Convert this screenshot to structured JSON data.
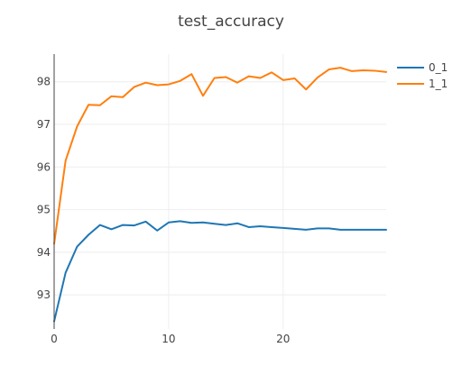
{
  "chart_data": {
    "type": "line",
    "title": "test_accuracy",
    "xlabel": "",
    "ylabel": "",
    "xlim": [
      0,
      29
    ],
    "ylim": [
      92.2,
      98.65
    ],
    "x_ticks": [
      0,
      10,
      20
    ],
    "y_ticks": [
      93,
      94,
      95,
      96,
      97,
      98
    ],
    "grid": true,
    "legend_position": "top-right",
    "x": [
      0,
      1,
      2,
      3,
      4,
      5,
      6,
      7,
      8,
      9,
      10,
      11,
      12,
      13,
      14,
      15,
      16,
      17,
      18,
      19,
      20,
      21,
      22,
      23,
      24,
      25,
      26,
      27,
      28,
      29
    ],
    "series": [
      {
        "name": "0_1",
        "color": "#1f77b4",
        "values": [
          92.38,
          93.52,
          94.13,
          94.41,
          94.64,
          94.54,
          94.64,
          94.63,
          94.72,
          94.51,
          94.7,
          94.73,
          94.69,
          94.7,
          94.67,
          94.64,
          94.68,
          94.59,
          94.61,
          94.59,
          94.57,
          94.55,
          94.53,
          94.56,
          94.56,
          94.53,
          94.53,
          94.53,
          94.53,
          94.53
        ]
      },
      {
        "name": "1_1",
        "color": "#ff7f0e",
        "values": [
          94.2,
          96.15,
          96.95,
          97.46,
          97.45,
          97.66,
          97.64,
          97.88,
          97.98,
          97.92,
          97.94,
          98.02,
          98.18,
          97.67,
          98.09,
          98.11,
          97.98,
          98.13,
          98.09,
          98.22,
          98.04,
          98.08,
          97.82,
          98.1,
          98.29,
          98.33,
          98.25,
          98.27,
          98.26,
          98.23
        ]
      }
    ]
  }
}
